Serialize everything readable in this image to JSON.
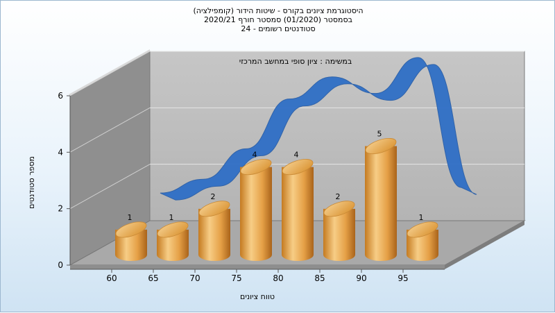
{
  "chart_data": {
    "type": "bar",
    "title_lines": [
      "היסטוגרמת ציונים בקורס - שיטות הידור (קומפילציה)",
      "בסמסטר  (01/2020)  סמסטר חורף  2020/21",
      "סטודנטים רשומים - 24"
    ],
    "subtitle": "במשימה : ציון סופי במחשב המרכזי",
    "xlabel": "טווח ציונים",
    "ylabel": "מספר סטודנטים",
    "x_ticks": [
      "60",
      "65",
      "70",
      "75",
      "80",
      "85",
      "90",
      "95"
    ],
    "y_ticks": [
      "0",
      "2",
      "4",
      "6"
    ],
    "ylim": [
      0,
      6
    ],
    "grid": true,
    "categories": [
      "60",
      "65",
      "70",
      "75",
      "80",
      "85",
      "90",
      "95"
    ],
    "values": [
      1,
      1,
      2,
      4,
      4,
      2,
      5,
      1
    ],
    "data_labels": [
      "1",
      "1",
      "2",
      "4",
      "4",
      "2",
      "5",
      "1"
    ],
    "trend_series": {
      "style": "smoothed ribbon",
      "values": [
        1.0,
        1.5,
        2.6,
        4.4,
        5.2,
        4.6,
        5.9,
        1.2
      ]
    },
    "colors": {
      "bar": "#e8a44a",
      "bar_top": "#f2c27c",
      "ribbon": "#2f6fc6",
      "back_wall": "#bdbdbd",
      "side_wall": "#8f8f8f",
      "floor": "#a9a9a9"
    }
  }
}
